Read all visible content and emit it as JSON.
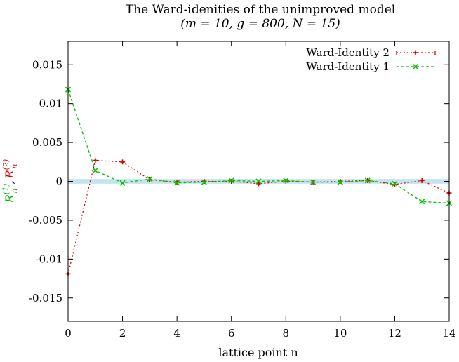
{
  "chart_data": {
    "type": "line",
    "title": "The Ward-idenities of the unimproved model",
    "subtitle": "(m = 10, g = 800, N = 15)",
    "xlabel": "lattice point n",
    "ylabel_parts": [
      "R",
      "(1)",
      "n",
      ",",
      "R",
      "(2)",
      "n"
    ],
    "xlim": [
      0,
      14
    ],
    "ylim": [
      -0.018,
      0.018
    ],
    "x_ticks": [
      0,
      2,
      4,
      6,
      8,
      10,
      12,
      14
    ],
    "x_tick_labels": [
      "0",
      "2",
      "4",
      "6",
      "8",
      "10",
      "12",
      "14"
    ],
    "y_ticks": [
      -0.015,
      -0.01,
      -0.005,
      0,
      0.005,
      0.01,
      0.015
    ],
    "y_tick_labels": [
      "-0.015",
      "-0.01",
      "-0.005",
      "0",
      "0.005",
      "0.01",
      "0.015"
    ],
    "grid": false,
    "legend_position": "top-right",
    "band": {
      "ymin": -0.0003,
      "ymax": 0.0003,
      "color": "#a8d8e8"
    },
    "x": [
      0,
      1,
      2,
      3,
      4,
      5,
      6,
      7,
      8,
      9,
      10,
      11,
      12,
      13,
      14
    ],
    "series": [
      {
        "name": "Ward-Identity 2",
        "color": "#e00000",
        "style": "dotted",
        "marker": "plus",
        "values": [
          -0.0119,
          0.0027,
          0.0025,
          0.0002,
          -0.0001,
          0.0,
          0.0,
          -0.0003,
          0.0,
          -0.0001,
          0.0,
          0.0001,
          -0.0004,
          0.0001,
          -0.0015
        ]
      },
      {
        "name": "Ward-Identity 1",
        "color": "#00c000",
        "style": "dashed",
        "marker": "x",
        "values": [
          0.0118,
          0.0014,
          -0.0002,
          0.0003,
          -0.0002,
          -0.0001,
          0.0001,
          0.0,
          0.0001,
          -0.0001,
          -0.0001,
          0.0001,
          -0.0003,
          -0.0026,
          -0.0028
        ]
      }
    ]
  }
}
